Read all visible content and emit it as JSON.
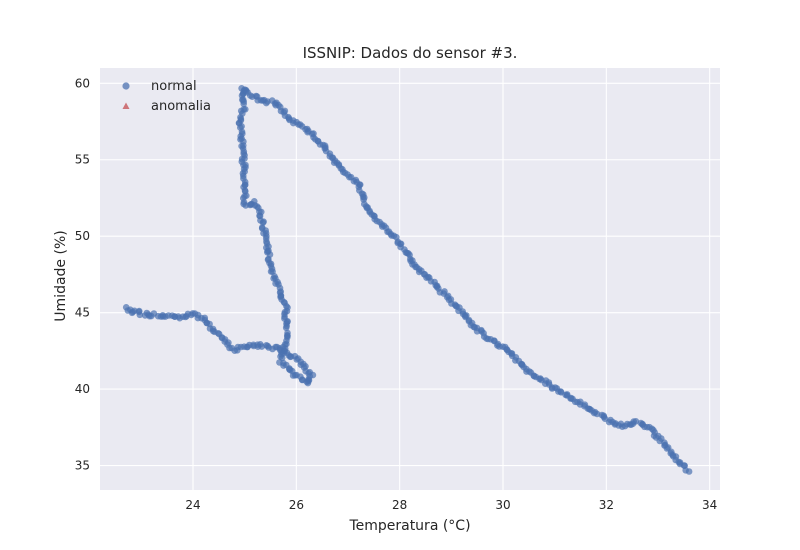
{
  "chart_data": {
    "type": "scatter",
    "title": "ISSNIP: Dados do sensor #3.",
    "xlabel": "Temperatura (°C)",
    "ylabel": "Umidade (%)",
    "xlim": [
      22.2,
      34.2
    ],
    "ylim": [
      33.4,
      61.0
    ],
    "xticks": [
      "24",
      "26",
      "28",
      "30",
      "32",
      "34"
    ],
    "yticks": [
      "35",
      "40",
      "45",
      "50",
      "55",
      "60"
    ],
    "grid": true,
    "background_color": "#eaeaf2",
    "legend_position": "top-left",
    "series": [
      {
        "name": "normal",
        "marker": "circle",
        "color": "#4c72b0",
        "path": [
          [
            22.7,
            45.3
          ],
          [
            23.0,
            44.9
          ],
          [
            23.4,
            44.8
          ],
          [
            23.8,
            44.7
          ],
          [
            24.0,
            44.9
          ],
          [
            24.2,
            44.6
          ],
          [
            24.4,
            43.8
          ],
          [
            24.6,
            43.2
          ],
          [
            24.8,
            42.6
          ],
          [
            25.1,
            42.9
          ],
          [
            25.4,
            42.8
          ],
          [
            25.7,
            42.6
          ],
          [
            26.0,
            42.0
          ],
          [
            26.3,
            40.9
          ],
          [
            26.2,
            40.3
          ],
          [
            25.9,
            41.2
          ],
          [
            25.7,
            41.8
          ],
          [
            25.8,
            43.2
          ],
          [
            25.8,
            45.3
          ],
          [
            25.7,
            46.2
          ],
          [
            25.5,
            48.0
          ],
          [
            25.4,
            50.0
          ],
          [
            25.3,
            51.5
          ],
          [
            25.2,
            52.2
          ],
          [
            25.0,
            52.1
          ],
          [
            25.0,
            54.0
          ],
          [
            24.95,
            56.0
          ],
          [
            24.9,
            57.6
          ],
          [
            25.0,
            58.4
          ],
          [
            24.95,
            59.7
          ],
          [
            25.3,
            58.9
          ],
          [
            25.6,
            58.7
          ],
          [
            25.9,
            57.6
          ],
          [
            26.2,
            57.0
          ],
          [
            26.5,
            56.0
          ],
          [
            26.9,
            54.3
          ],
          [
            27.2,
            53.4
          ],
          [
            27.4,
            51.6
          ],
          [
            27.7,
            50.6
          ],
          [
            28.0,
            49.5
          ],
          [
            28.3,
            48.0
          ],
          [
            28.6,
            47.2
          ],
          [
            28.9,
            46.1
          ],
          [
            29.2,
            45.1
          ],
          [
            29.4,
            44.2
          ],
          [
            29.7,
            43.4
          ],
          [
            30.1,
            42.6
          ],
          [
            30.4,
            41.4
          ],
          [
            30.8,
            40.5
          ],
          [
            31.3,
            39.5
          ],
          [
            31.7,
            38.6
          ],
          [
            32.0,
            38.0
          ],
          [
            32.3,
            37.6
          ],
          [
            32.6,
            37.9
          ],
          [
            32.9,
            37.3
          ],
          [
            33.2,
            36.0
          ],
          [
            33.4,
            35.3
          ],
          [
            33.6,
            34.6
          ]
        ]
      },
      {
        "name": "anomalia",
        "marker": "triangle",
        "color": "#c44e52",
        "path": []
      }
    ]
  }
}
